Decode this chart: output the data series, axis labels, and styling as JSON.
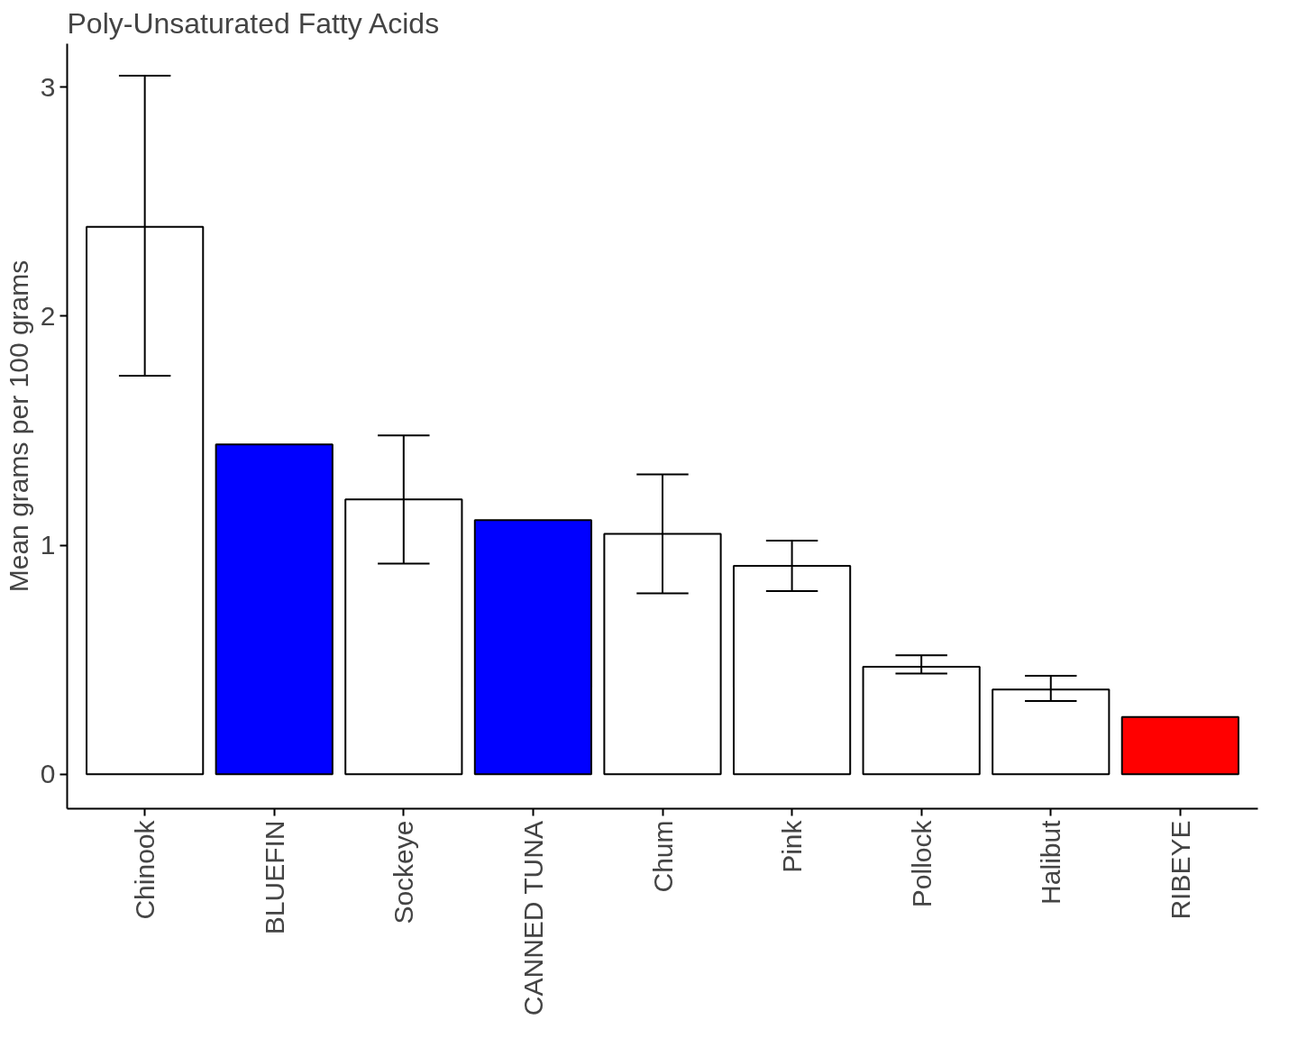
{
  "chart_data": {
    "type": "bar",
    "title": "Poly-Unsaturated Fatty Acids",
    "ylabel": "Mean grams per 100 grams",
    "categories": [
      "Chinook",
      "BLUEFIN",
      "Sockeye",
      "CANNED TUNA",
      "Chum",
      "Pink",
      "Pollock",
      "Halibut",
      "RIBEYE"
    ],
    "values": [
      2.39,
      1.44,
      1.2,
      1.11,
      1.05,
      0.91,
      0.47,
      0.37,
      0.25
    ],
    "colors": [
      "#ffffff",
      "#0000ff",
      "#ffffff",
      "#0000ff",
      "#ffffff",
      "#ffffff",
      "#ffffff",
      "#ffffff",
      "#ff0000"
    ],
    "errors": [
      [
        1.74,
        3.05
      ],
      null,
      [
        0.92,
        1.48
      ],
      null,
      [
        0.79,
        1.31
      ],
      [
        0.8,
        1.02
      ],
      [
        0.44,
        0.52
      ],
      [
        0.32,
        0.43
      ],
      null
    ],
    "ylim": [
      -0.15,
      3.19
    ],
    "yticks": [
      0,
      1,
      2,
      3
    ],
    "grid": false
  }
}
